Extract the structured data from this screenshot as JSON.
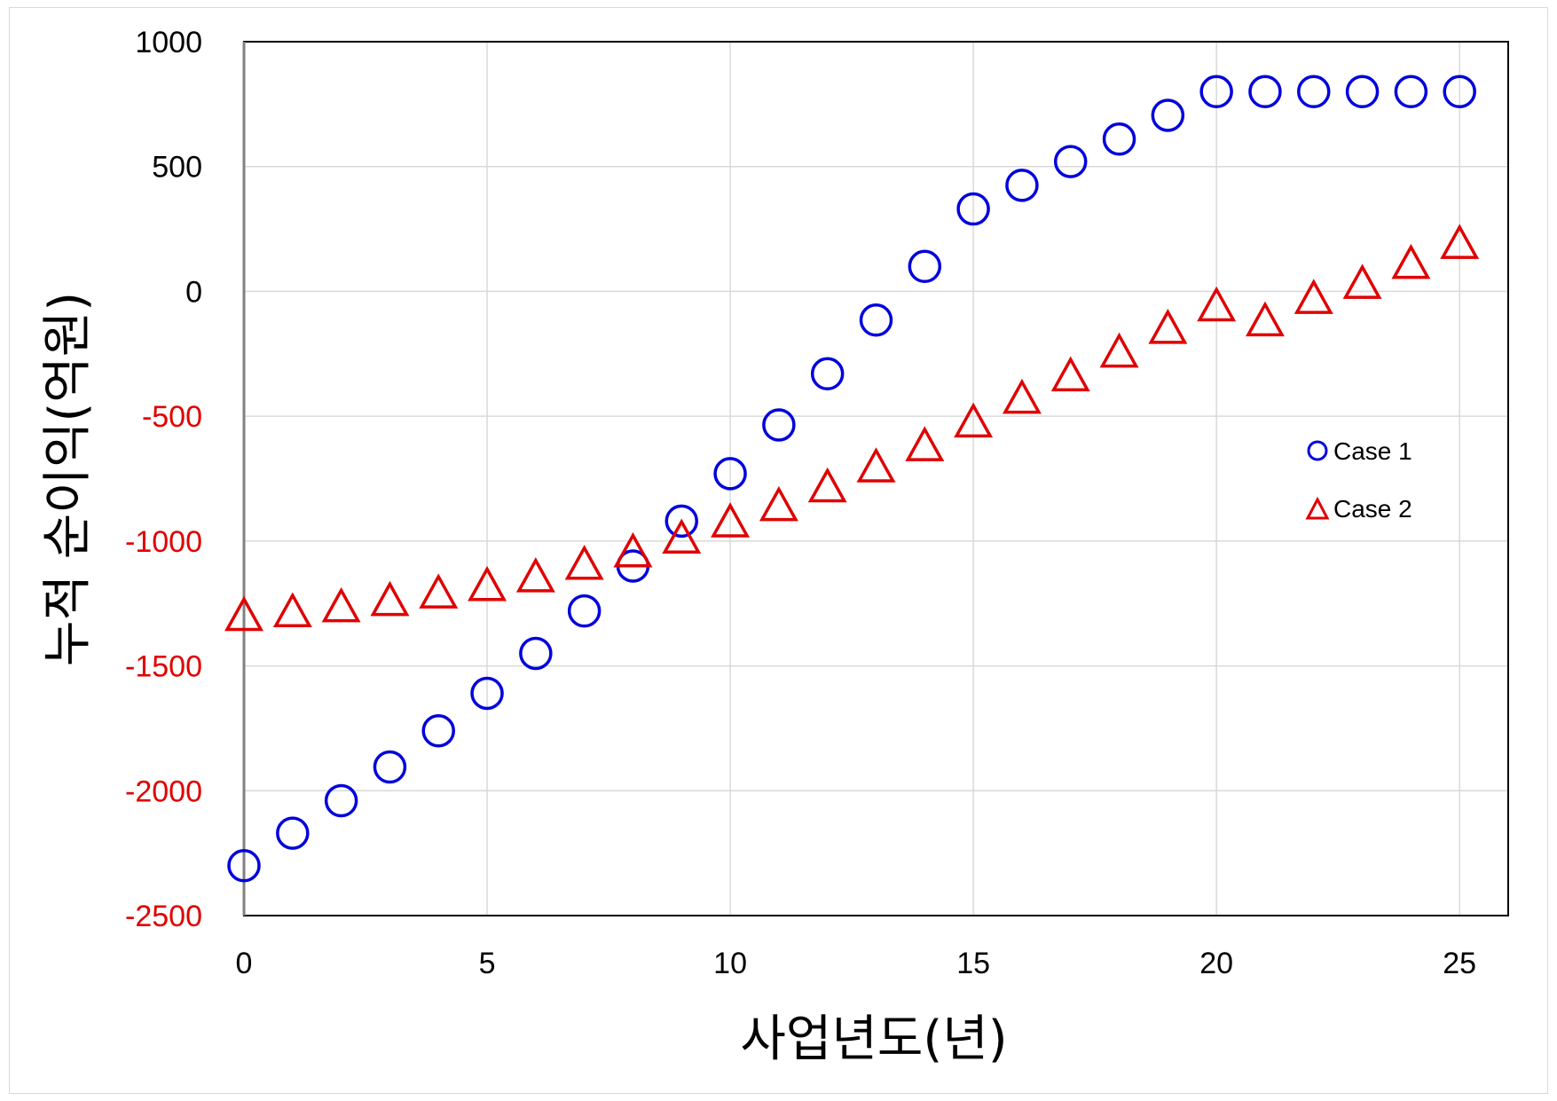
{
  "chart_data": {
    "type": "scatter",
    "xlabel": "사업년도(년)",
    "ylabel": "누적 순이익(억원)",
    "xlim": [
      0,
      26
    ],
    "ylim": [
      -2500,
      1000
    ],
    "x_ticks": [
      0,
      5,
      10,
      15,
      20,
      25
    ],
    "y_ticks": [
      1000,
      500,
      0,
      -500,
      -1000,
      -1500,
      -2000,
      -2500
    ],
    "x_tick_labels": [
      "0",
      "5",
      "10",
      "15",
      "20",
      "25"
    ],
    "y_tick_labels": [
      "1000",
      "500",
      "0",
      "-500",
      "-1000",
      "-1500",
      "-2000",
      "-2500"
    ],
    "y_tick_colors": {
      "positive": "#000000",
      "negative": "#e00000"
    },
    "grid": true,
    "legend_position": "right",
    "series": [
      {
        "name": "Case 1",
        "marker": "circle",
        "color": "#0000dd",
        "x": [
          0,
          1,
          2,
          3,
          4,
          5,
          6,
          7,
          8,
          9,
          10,
          11,
          12,
          13,
          14,
          15,
          16,
          17,
          18,
          19,
          20,
          21,
          22,
          23,
          24,
          25
        ],
        "y": [
          -2300,
          -2170,
          -2040,
          -1905,
          -1760,
          -1610,
          -1450,
          -1280,
          -1100,
          -920,
          -730,
          -535,
          -330,
          -115,
          100,
          330,
          425,
          520,
          610,
          705,
          800,
          800,
          800,
          800,
          800,
          800
        ]
      },
      {
        "name": "Case 2",
        "marker": "triangle",
        "color": "#e00000",
        "x": [
          0,
          1,
          2,
          3,
          4,
          5,
          6,
          7,
          8,
          9,
          10,
          11,
          12,
          13,
          14,
          15,
          16,
          17,
          18,
          19,
          20,
          21,
          22,
          23,
          24,
          25
        ],
        "y": [
          -1300,
          -1285,
          -1265,
          -1240,
          -1210,
          -1180,
          -1145,
          -1095,
          -1045,
          -990,
          -925,
          -860,
          -785,
          -705,
          -620,
          -525,
          -430,
          -340,
          -245,
          -150,
          -60,
          -120,
          -30,
          30,
          110,
          190
        ]
      }
    ]
  }
}
